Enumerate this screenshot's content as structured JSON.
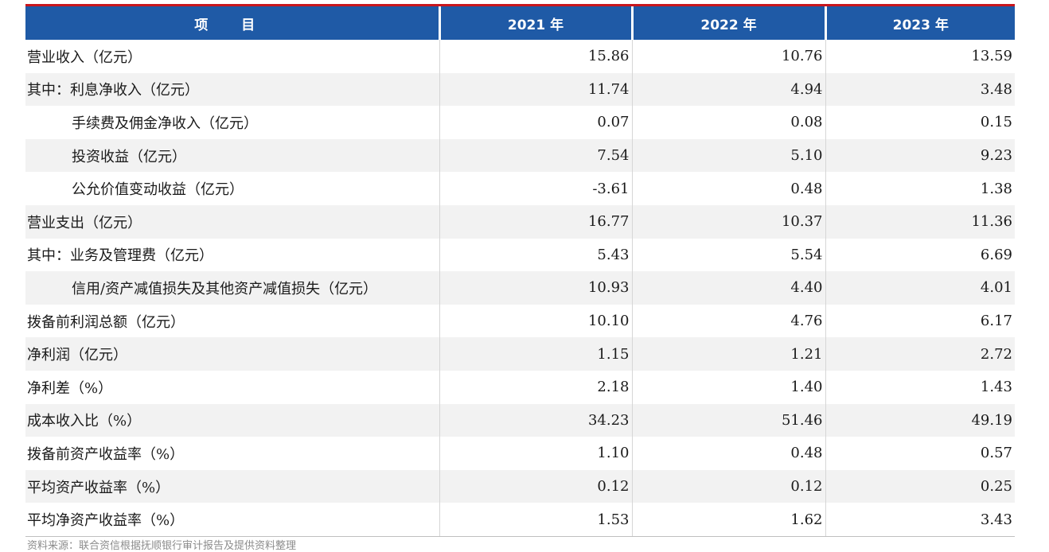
{
  "table": {
    "headers": [
      "项    目",
      "2021 年",
      "2022 年",
      "2023 年"
    ],
    "rows": [
      {
        "label": "营业收入（亿元）",
        "indent": false,
        "values": [
          "15.86",
          "10.76",
          "13.59"
        ]
      },
      {
        "label": "其中：利息净收入（亿元）",
        "indent": false,
        "values": [
          "11.74",
          "4.94",
          "3.48"
        ]
      },
      {
        "label": "手续费及佣金净收入（亿元）",
        "indent": true,
        "values": [
          "0.07",
          "0.08",
          "0.15"
        ]
      },
      {
        "label": "投资收益（亿元）",
        "indent": true,
        "values": [
          "7.54",
          "5.10",
          "9.23"
        ]
      },
      {
        "label": "公允价值变动收益（亿元）",
        "indent": true,
        "values": [
          "-3.61",
          "0.48",
          "1.38"
        ]
      },
      {
        "label": "营业支出（亿元）",
        "indent": false,
        "values": [
          "16.77",
          "10.37",
          "11.36"
        ]
      },
      {
        "label": "其中：业务及管理费（亿元）",
        "indent": false,
        "values": [
          "5.43",
          "5.54",
          "6.69"
        ]
      },
      {
        "label": "信用/资产减值损失及其他资产减值损失（亿元）",
        "indent": true,
        "values": [
          "10.93",
          "4.40",
          "4.01"
        ]
      },
      {
        "label": "拨备前利润总额（亿元）",
        "indent": false,
        "values": [
          "10.10",
          "4.76",
          "6.17"
        ]
      },
      {
        "label": "净利润（亿元）",
        "indent": false,
        "values": [
          "1.15",
          "1.21",
          "2.72"
        ]
      },
      {
        "label": "净利差（%）",
        "indent": false,
        "values": [
          "2.18",
          "1.40",
          "1.43"
        ]
      },
      {
        "label": "成本收入比（%）",
        "indent": false,
        "values": [
          "34.23",
          "51.46",
          "49.19"
        ]
      },
      {
        "label": "拨备前资产收益率（%）",
        "indent": false,
        "values": [
          "1.10",
          "0.48",
          "0.57"
        ]
      },
      {
        "label": "平均资产收益率（%）",
        "indent": false,
        "values": [
          "0.12",
          "0.12",
          "0.25"
        ]
      },
      {
        "label": "平均净资产收益率（%）",
        "indent": false,
        "values": [
          "1.53",
          "1.62",
          "3.43"
        ]
      }
    ]
  },
  "footnote": "资料来源：联合资信根据抚顺银行审计报告及提供资料整理",
  "colors": {
    "header_bg": "#1f5aa6",
    "top_rule": "#c8161d",
    "stripe": "#f2f2f2"
  }
}
